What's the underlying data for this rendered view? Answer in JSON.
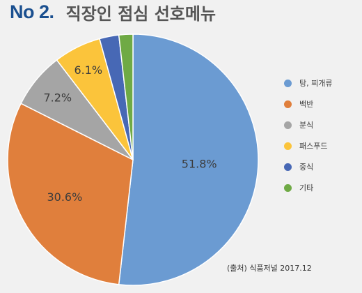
{
  "header": {
    "badge": "No 2.",
    "title": "직장인 점심 선호메뉴"
  },
  "source": "(출처) 식품저널 2017.12",
  "chart_data": {
    "type": "pie",
    "title": "직장인 점심 선호메뉴",
    "slices": [
      {
        "label": "탕, 찌개류",
        "value": 51.8,
        "value_label": "51.8%",
        "color": "#6b9bd2"
      },
      {
        "label": "백반",
        "value": 30.6,
        "value_label": "30.6%",
        "color": "#e07f3c"
      },
      {
        "label": "분식",
        "value": 7.2,
        "value_label": "7.2%",
        "color": "#a5a5a5"
      },
      {
        "label": "패스푸드",
        "value": 6.1,
        "value_label": "6.1%",
        "color": "#fbc43b"
      },
      {
        "label": "중식",
        "value": 2.5,
        "value_label": "",
        "color": "#4768b5"
      },
      {
        "label": "기타",
        "value": 1.8,
        "value_label": "",
        "color": "#6faa45"
      }
    ],
    "legend_position": "right"
  }
}
